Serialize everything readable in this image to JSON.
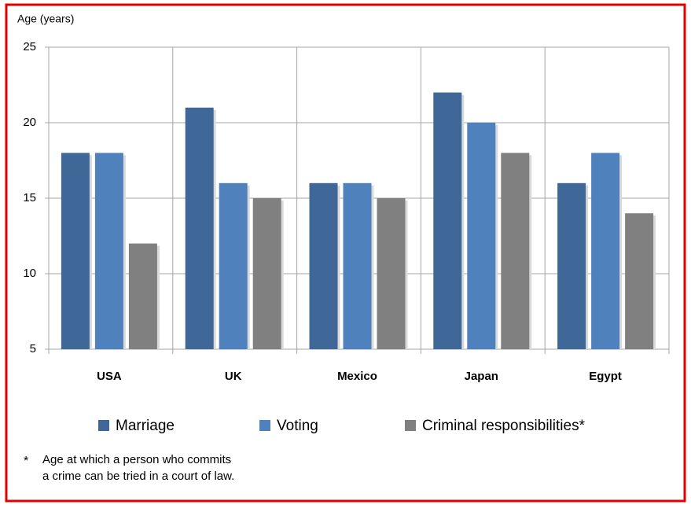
{
  "chart_data": {
    "type": "bar",
    "y_label": "Age (years)",
    "categories": [
      "USA",
      "UK",
      "Mexico",
      "Japan",
      "Egypt"
    ],
    "series": [
      {
        "name": "Marriage",
        "color": "#3f6797",
        "values": [
          18,
          21,
          16,
          22,
          16
        ]
      },
      {
        "name": "Voting",
        "color": "#4f81bd",
        "values": [
          18,
          16,
          16,
          20,
          18
        ]
      },
      {
        "name": "Criminal responsibilities*",
        "color": "#808080",
        "values": [
          12,
          15,
          15,
          18,
          14
        ]
      }
    ],
    "ylim": [
      5,
      25
    ],
    "yticks": [
      5,
      10,
      15,
      20,
      25
    ],
    "grid": true,
    "legend": "bottom",
    "footnote": {
      "marker": "*",
      "lines": [
        "Age at which a person who commits",
        "a crime can be tried in a court of law."
      ]
    }
  }
}
